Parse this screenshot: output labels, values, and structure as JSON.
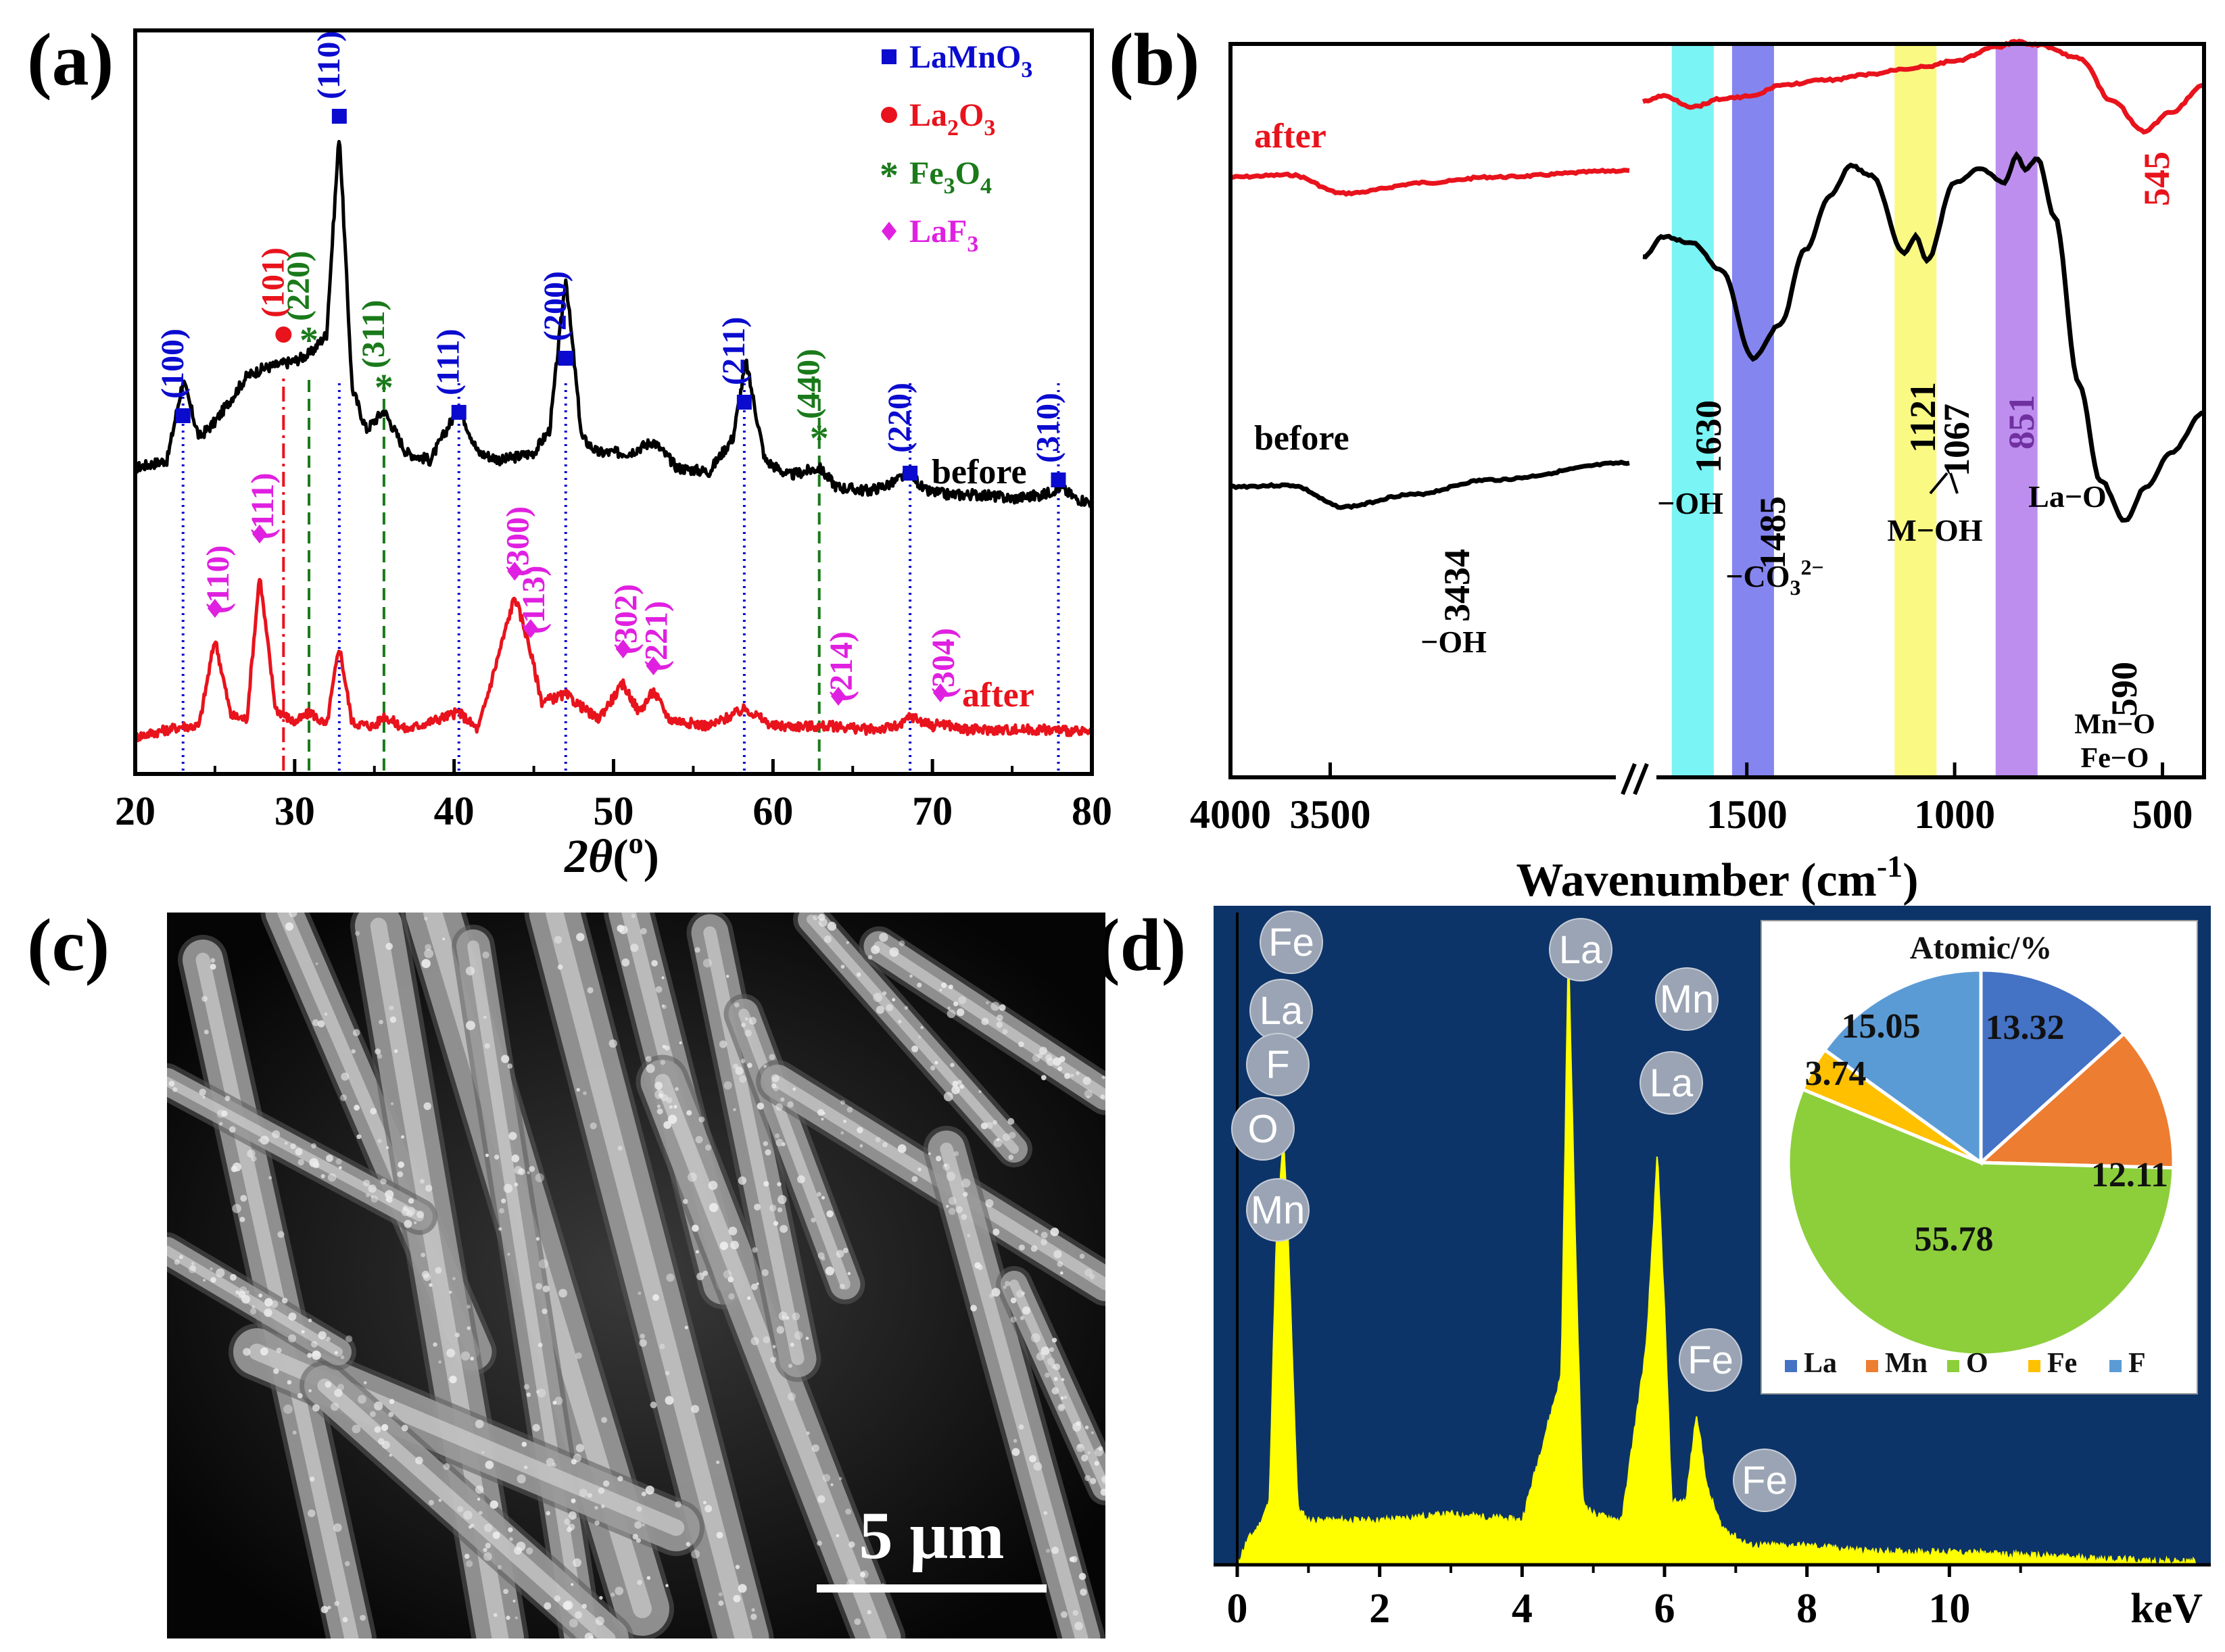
{
  "panels": {
    "a": "(a)",
    "b": "(b)",
    "c": "(c)",
    "d": "(d)"
  },
  "chart_data": [
    {
      "panel": "(a)",
      "type": "line",
      "xlabel": "2θ(°)",
      "xlim": [
        20,
        80
      ],
      "xticks": [
        "20",
        "30",
        "40",
        "50",
        "60",
        "70",
        "80"
      ],
      "series": [
        {
          "name": "before",
          "color": "#000000",
          "x": [
            20,
            22,
            23,
            24,
            25,
            26,
            27,
            28,
            29,
            30,
            31,
            32,
            32.8,
            33.6,
            34.5,
            35.6,
            37,
            38.5,
            40.3,
            41.5,
            43,
            45,
            46,
            47,
            48,
            49,
            51,
            52.5,
            54,
            56,
            57.5,
            58.3,
            59.5,
            61,
            62.9,
            64,
            66,
            67.5,
            68.6,
            69.5,
            71,
            73,
            75,
            77,
            78,
            79,
            80
          ],
          "y": [
            0.12,
            0.14,
            0.35,
            0.2,
            0.24,
            0.3,
            0.36,
            0.38,
            0.39,
            0.4,
            0.42,
            0.47,
            1.0,
            0.33,
            0.22,
            0.27,
            0.16,
            0.14,
            0.28,
            0.16,
            0.14,
            0.16,
            0.22,
            0.62,
            0.2,
            0.16,
            0.16,
            0.19,
            0.12,
            0.11,
            0.2,
            0.4,
            0.14,
            0.1,
            0.12,
            0.07,
            0.06,
            0.08,
            0.11,
            0.06,
            0.05,
            0.05,
            0.04,
            0.05,
            0.07,
            0.04,
            0.03
          ]
        },
        {
          "name": "after",
          "color": "#e8131c",
          "x": [
            20,
            23,
            24,
            25,
            26,
            27,
            27.8,
            28.8,
            30,
            31,
            32,
            32.8,
            33.6,
            35,
            35.6,
            37,
            40.3,
            41.5,
            43.8,
            44.6,
            45.5,
            47,
            49,
            50.6,
            51.6,
            52.5,
            53.5,
            56,
            58.3,
            60,
            62,
            64,
            66,
            68,
            68.6,
            70,
            70.5,
            72,
            75,
            78,
            80
          ],
          "y": [
            0.0,
            0.03,
            0.03,
            0.28,
            0.06,
            0.05,
            0.46,
            0.08,
            0.04,
            0.07,
            0.03,
            0.26,
            0.04,
            0.03,
            0.06,
            0.02,
            0.07,
            0.02,
            0.4,
            0.28,
            0.1,
            0.12,
            0.05,
            0.15,
            0.07,
            0.13,
            0.05,
            0.03,
            0.08,
            0.03,
            0.03,
            0.03,
            0.02,
            0.03,
            0.06,
            0.03,
            0.04,
            0.02,
            0.02,
            0.02,
            0.01
          ]
        }
      ],
      "reference_lines": [
        {
          "x": 23.0,
          "color": "#0b0bcf",
          "style": "dotted"
        },
        {
          "x": 29.3,
          "color": "#e8131c",
          "style": "dashdot"
        },
        {
          "x": 30.9,
          "color": "#1a7a1a",
          "style": "dashed"
        },
        {
          "x": 32.8,
          "color": "#0b0bcf",
          "style": "dotted"
        },
        {
          "x": 35.6,
          "color": "#1a7a1a",
          "style": "dashed"
        },
        {
          "x": 40.3,
          "color": "#0b0bcf",
          "style": "dotted"
        },
        {
          "x": 47.0,
          "color": "#0b0bcf",
          "style": "dotted"
        },
        {
          "x": 58.2,
          "color": "#0b0bcf",
          "style": "dotted"
        },
        {
          "x": 62.9,
          "color": "#1a7a1a",
          "style": "dashed"
        },
        {
          "x": 68.6,
          "color": "#0b0bcf",
          "style": "dotted"
        },
        {
          "x": 77.9,
          "color": "#0b0bcf",
          "style": "dotted"
        }
      ],
      "annotations": [
        {
          "text": "(100)",
          "phase": "LaMnO3",
          "x": 23.0
        },
        {
          "text": "(101)",
          "phase": "La2O3",
          "x": 29.3
        },
        {
          "text": "(220)",
          "phase": "Fe3O4",
          "x": 30.9
        },
        {
          "text": "(110)",
          "phase": "LaMnO3",
          "x": 32.8
        },
        {
          "text": "(311)",
          "phase": "Fe3O4",
          "x": 35.6
        },
        {
          "text": "(111)",
          "phase": "LaMnO3",
          "x": 40.3
        },
        {
          "text": "(200)",
          "phase": "LaMnO3",
          "x": 47.0
        },
        {
          "text": "(211)",
          "phase": "LaMnO3",
          "x": 58.2
        },
        {
          "text": "(440)",
          "phase": "Fe3O4",
          "x": 62.9
        },
        {
          "text": "(220)",
          "phase": "LaMnO3",
          "x": 68.6
        },
        {
          "text": "(310)",
          "phase": "LaMnO3",
          "x": 77.9
        },
        {
          "text": "(110)",
          "phase": "LaF3",
          "x": 25.0
        },
        {
          "text": "(111)",
          "phase": "LaF3",
          "x": 27.8
        },
        {
          "text": "(300)",
          "phase": "LaF3",
          "x": 43.8
        },
        {
          "text": "(113)",
          "phase": "LaF3",
          "x": 44.8
        },
        {
          "text": "(302)",
          "phase": "LaF3",
          "x": 50.6
        },
        {
          "text": "(221)",
          "phase": "LaF3",
          "x": 52.5
        },
        {
          "text": "(214)",
          "phase": "LaF3",
          "x": 64.1
        },
        {
          "text": "(304)",
          "phase": "LaF3",
          "x": 70.5
        }
      ],
      "legend": {
        "placement": "top-right",
        "entries": [
          {
            "name": "LaMnO",
            "sub": "3",
            "color": "#0b0bcf",
            "marker": "square"
          },
          {
            "name": "La",
            "sub": "2",
            "tail": "O",
            "sub2": "3",
            "color": "#e8131c",
            "marker": "circle"
          },
          {
            "name": "Fe",
            "sub": "3",
            "tail": "O",
            "sub2": "4",
            "color": "#1a7a1a",
            "marker": "star"
          },
          {
            "name": "LaF",
            "sub": "3",
            "color": "#e020e0",
            "marker": "diamond"
          }
        ]
      },
      "curve_labels": {
        "before": "before",
        "after": "after"
      }
    },
    {
      "panel": "(b)",
      "type": "line",
      "xlabel": "Wavenumber (cm-1)",
      "xticks": [
        "4000",
        "3500",
        "1500",
        "1000",
        "500"
      ],
      "broken_axis": true,
      "series": [
        {
          "name": "after",
          "color": "#e8131c"
        },
        {
          "name": "before",
          "color": "#000000"
        }
      ],
      "bands": [
        {
          "center": 1630,
          "color": "#6ff3f3"
        },
        {
          "center": 1485,
          "color": "#7b7bef"
        },
        {
          "center": 1094,
          "color": "#f8f87a"
        },
        {
          "center": 851,
          "color": "#b884ee"
        }
      ],
      "peak_labels": [
        "3434",
        "1630",
        "1485",
        "1121",
        "1067",
        "851",
        "590",
        "545"
      ],
      "group_labels": {
        "oh_left": "−OH",
        "oh_1630": "−OH",
        "co3": "−CO",
        "co3_sub": "3",
        "co3_sup": "2−",
        "moh": "M−OH",
        "lao": "La−O",
        "mno": "Mn−O",
        "feo": "Fe−O"
      },
      "curve_labels": {
        "after": "after",
        "before": "before"
      }
    },
    {
      "panel": "(d)",
      "type": "line",
      "xlabel": "keV",
      "xlim": [
        0,
        13.5
      ],
      "xticks": [
        "0",
        "2",
        "4",
        "6",
        "8",
        "10"
      ],
      "background": "#0d3468",
      "series": [
        {
          "name": "EDS",
          "color": "#ffff00",
          "x": [
            0,
            0.15,
            0.3,
            0.45,
            0.55,
            0.65,
            0.72,
            0.85,
            1.0,
            1.5,
            2.0,
            3.0,
            4.0,
            4.55,
            4.65,
            4.75,
            4.85,
            5.0,
            5.4,
            5.75,
            5.9,
            6.0,
            6.1,
            6.3,
            6.45,
            6.6,
            6.8,
            7.05,
            7.2,
            8.0,
            9.0,
            10.0,
            11.0,
            12.0,
            13.0,
            13.5
          ],
          "y": [
            0,
            0.04,
            0.06,
            0.1,
            0.52,
            0.68,
            0.5,
            0.09,
            0.07,
            0.07,
            0.07,
            0.08,
            0.07,
            0.3,
            0.98,
            0.5,
            0.1,
            0.08,
            0.07,
            0.35,
            0.65,
            0.4,
            0.1,
            0.1,
            0.24,
            0.12,
            0.06,
            0.04,
            0.03,
            0.03,
            0.02,
            0.02,
            0.015,
            0.01,
            0.005,
            0.005
          ]
        }
      ],
      "peak_labels": [
        {
          "text": "Fe",
          "keV": 0.7
        },
        {
          "text": "La",
          "keV": 0.7
        },
        {
          "text": "F",
          "keV": 0.68
        },
        {
          "text": "O",
          "keV": 0.52
        },
        {
          "text": "Mn",
          "keV": 0.64
        },
        {
          "text": "La",
          "keV": 4.65
        },
        {
          "text": "Mn",
          "keV": 5.9
        },
        {
          "text": "La",
          "keV": 5.9
        },
        {
          "text": "Fe",
          "keV": 6.4
        },
        {
          "text": "Fe",
          "keV": 7.06
        }
      ]
    },
    {
      "panel": "(d) inset",
      "type": "pie",
      "title": "Atomic/%",
      "slices": [
        {
          "name": "La",
          "value": 13.32,
          "color": "#4472c4"
        },
        {
          "name": "Mn",
          "value": 12.11,
          "color": "#ed7d31"
        },
        {
          "name": "O",
          "value": 55.78,
          "color": "#8ccf3a"
        },
        {
          "name": "Fe",
          "value": 3.74,
          "color": "#ffc000"
        },
        {
          "name": "F",
          "value": 15.05,
          "color": "#5b9bd5"
        }
      ],
      "legend": {
        "placement": "bottom"
      }
    }
  ],
  "sem": {
    "scale_label": "5 μm"
  }
}
